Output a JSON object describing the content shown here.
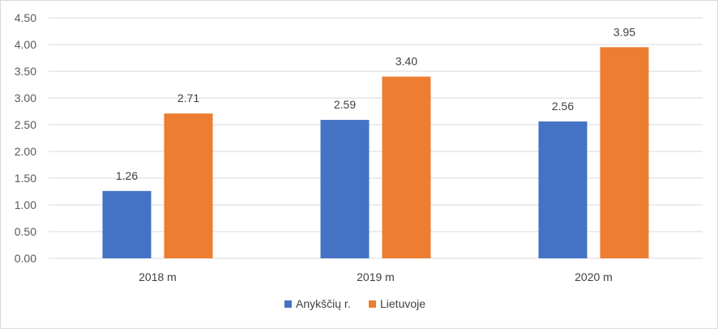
{
  "chart_data": {
    "type": "bar",
    "categories": [
      "2018 m",
      "2019 m",
      "2020 m"
    ],
    "series": [
      {
        "name": "Anykščių r.",
        "values": [
          1.26,
          2.59,
          2.56
        ],
        "color": "#4472C4"
      },
      {
        "name": "Lietuvoje",
        "values": [
          2.71,
          3.4,
          3.95
        ],
        "color": "#ED7D31"
      }
    ],
    "data_labels": [
      [
        "1.26",
        "2.59",
        "2.56"
      ],
      [
        "2.71",
        "3.40",
        "3.95"
      ]
    ],
    "y_ticks": [
      "0.00",
      "0.50",
      "1.00",
      "1.50",
      "2.00",
      "2.50",
      "3.00",
      "3.50",
      "4.00",
      "4.50"
    ],
    "ylim": [
      0,
      4.5
    ],
    "title": "",
    "xlabel": "",
    "ylabel": "",
    "grid": true,
    "legend_position": "bottom",
    "gridline_color": "#d9d9d9"
  }
}
